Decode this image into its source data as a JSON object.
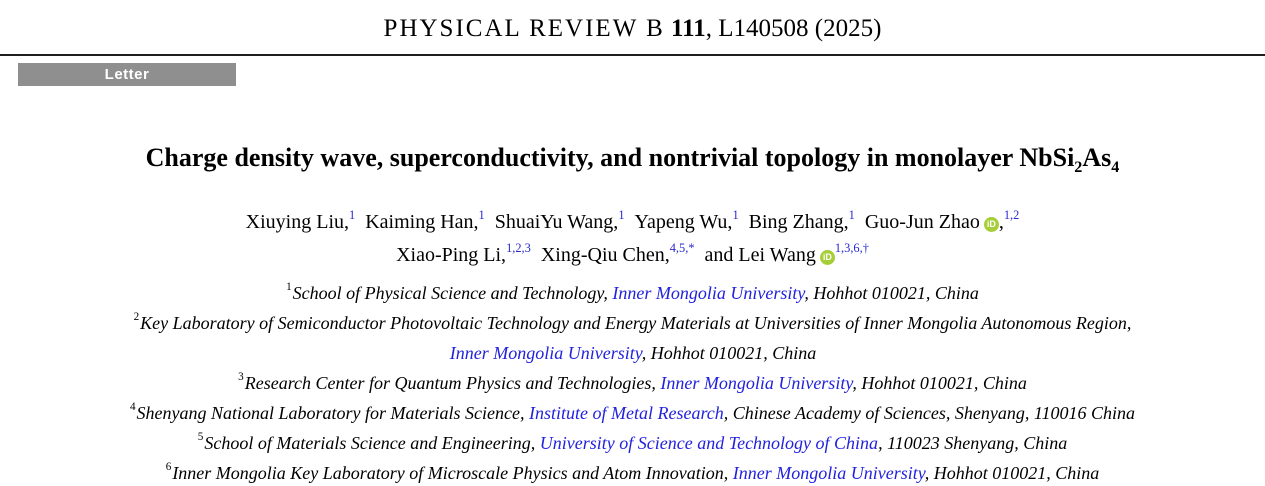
{
  "colors": {
    "link_blue": "#2222DD",
    "superscript_blue": "#2A2AD0",
    "badge_gray": "#8F8F8F",
    "orcid_green": "#A6CE39"
  },
  "journal": {
    "name": "PHYSICAL REVIEW B",
    "volume": "111",
    "rest": ", L140508 (2025)"
  },
  "badge": {
    "label": "Letter"
  },
  "icons": {
    "orcid_label": "iD"
  },
  "title": {
    "text": "Charge density wave, superconductivity, and nontrivial topology in monolayer NbSi",
    "sub1": "2",
    "mid": "As",
    "sub2": "4"
  },
  "authors": {
    "line1": [
      {
        "name": "Xiuying Liu,",
        "sup": "1"
      },
      {
        "name": "Kaiming Han,",
        "sup": "1"
      },
      {
        "name": "ShuaiYu Wang,",
        "sup": "1"
      },
      {
        "name": "Yapeng Wu,",
        "sup": "1"
      },
      {
        "name": "Bing Zhang,",
        "sup": "1"
      },
      {
        "name": "Guo-Jun Zhao",
        "after": ",",
        "sup": "1,2"
      }
    ],
    "line2": [
      {
        "name": "Xiao-Ping Li,",
        "sup": "1,2,3"
      },
      {
        "name": "Xing-Qiu Chen,",
        "sup": "4,5,*"
      },
      {
        "name": "and Lei Wang",
        "after": "",
        "sup": "1,3,6,†"
      }
    ]
  },
  "affiliation_lines": [
    {
      "sup": "1",
      "pre": "School of Physical Science and Technology, ",
      "link": "Inner Mongolia University",
      "post": ", Hohhot 010021, China"
    },
    {
      "sup": "2",
      "pre": "Key Laboratory of Semiconductor Photovoltaic Technology and Energy Materials at Universities of Inner Mongolia Autonomous Region,",
      "link": "",
      "post": ""
    },
    {
      "sup": "",
      "pre": "",
      "link": "Inner Mongolia University",
      "post": ", Hohhot 010021, China"
    },
    {
      "sup": "3",
      "pre": "Research Center for Quantum Physics and Technologies, ",
      "link": "Inner Mongolia University",
      "post": ", Hohhot 010021, China"
    },
    {
      "sup": "4",
      "pre": "Shenyang National Laboratory for Materials Science, ",
      "link": "Institute of Metal Research",
      "post": ", Chinese Academy of Sciences, Shenyang, 110016 China"
    },
    {
      "sup": "5",
      "pre": "School of Materials Science and Engineering, ",
      "link": "University of Science and Technology of China",
      "post": ", 110023 Shenyang, China"
    },
    {
      "sup": "6",
      "pre": "Inner Mongolia Key Laboratory of Microscale Physics and Atom Innovation, ",
      "link": "Inner Mongolia University",
      "post": ", Hohhot 010021, China"
    }
  ]
}
